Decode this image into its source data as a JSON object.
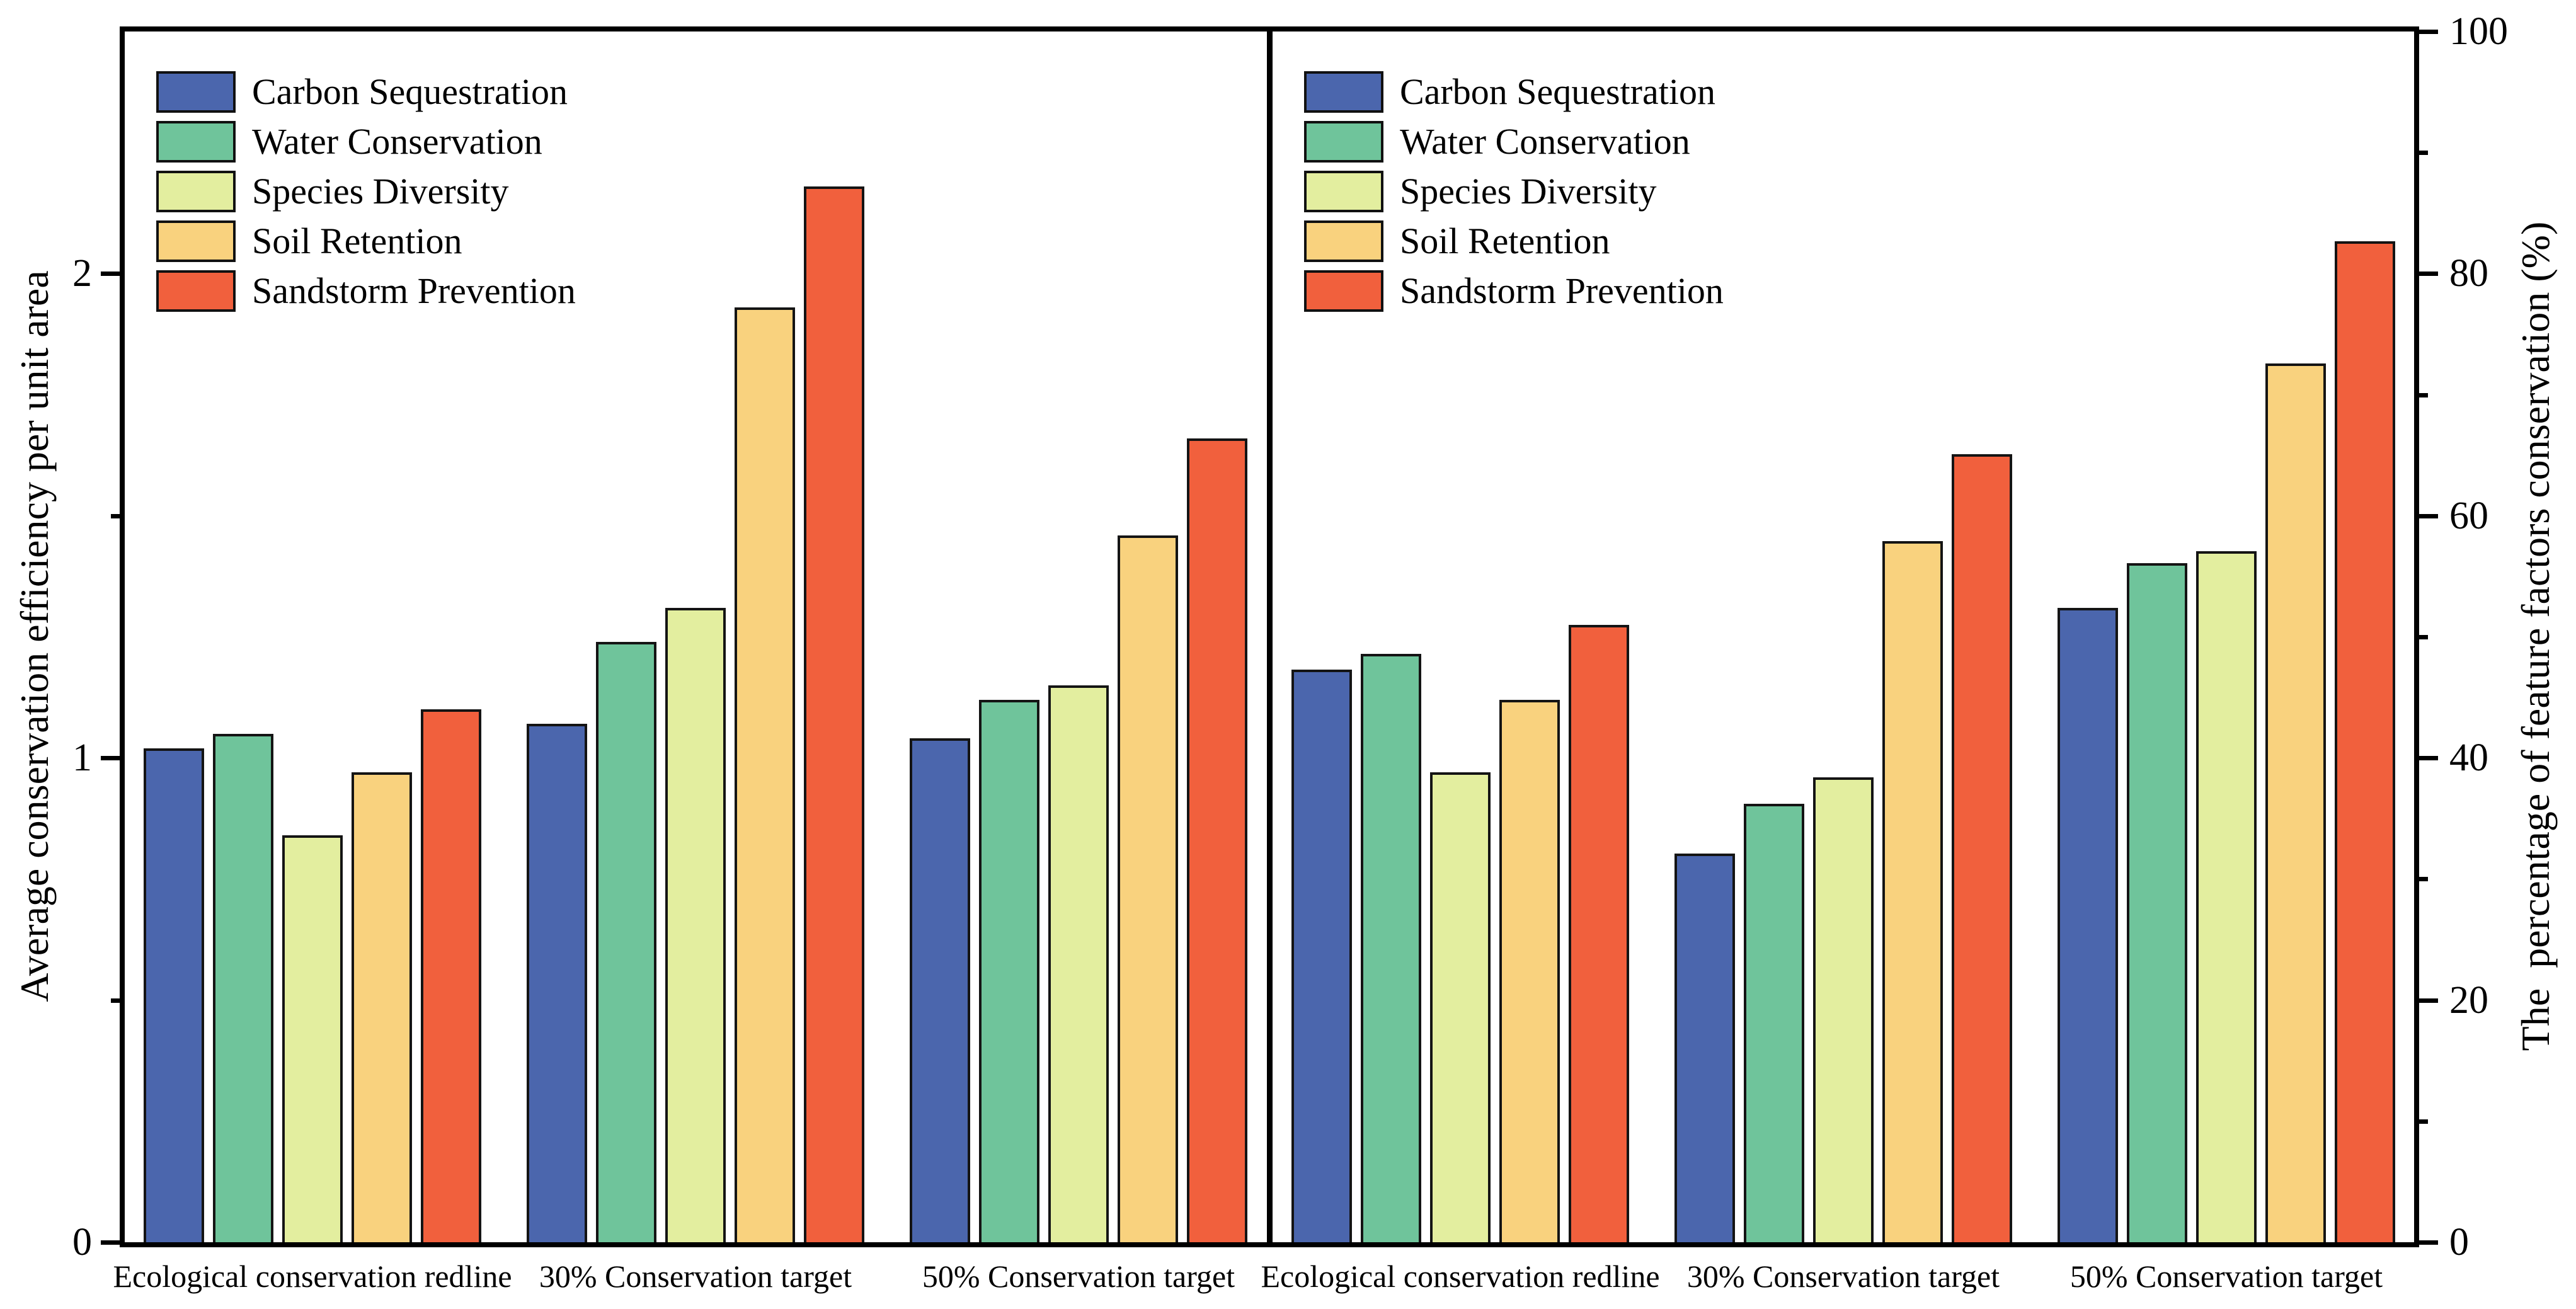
{
  "figure": {
    "background": "#ffffff",
    "frame_color": "#000000",
    "bar_border_color": "#141414"
  },
  "chart_data": [
    {
      "type": "bar",
      "panel": "left",
      "axis_side": "left",
      "ylabel": "Average conservation efficiency per unit area",
      "ylim": [
        0,
        2.5
      ],
      "yticks_major": [
        0,
        1,
        2
      ],
      "ytick_labels": [
        "0",
        "1",
        "2"
      ],
      "yticks_minor": [
        0.5,
        1.5
      ],
      "grid": "off",
      "legend_position": "upper-left",
      "categories": [
        "Ecological conservation redline",
        "30% Conservation target",
        "50% Conservation target"
      ],
      "series": [
        {
          "name": "Carbon Sequestration",
          "color": "#4B66AD",
          "values": [
            1.02,
            1.07,
            1.04
          ]
        },
        {
          "name": "Water Conservation",
          "color": "#6FC49B",
          "values": [
            1.05,
            1.24,
            1.12
          ]
        },
        {
          "name": "Species Diversity",
          "color": "#E3EE9F",
          "values": [
            0.84,
            1.31,
            1.15
          ]
        },
        {
          "name": "Soil Retention",
          "color": "#F9D27E",
          "values": [
            0.97,
            1.93,
            1.46
          ]
        },
        {
          "name": "Sandstorm Prevention",
          "color": "#F1603D",
          "values": [
            1.1,
            2.18,
            1.66
          ]
        }
      ]
    },
    {
      "type": "bar",
      "panel": "right",
      "axis_side": "right",
      "ylabel": "The  percentage of feature factors conservation (%)",
      "ylim": [
        0,
        100
      ],
      "yticks_major": [
        0,
        20,
        40,
        60,
        80,
        100
      ],
      "ytick_labels": [
        "0",
        "20",
        "40",
        "60",
        "80",
        "100"
      ],
      "yticks_minor": [
        10,
        30,
        50,
        70,
        90
      ],
      "grid": "off",
      "legend_position": "upper-left",
      "categories": [
        "Ecological conservation redline",
        "30% Conservation target",
        "50% Conservation target"
      ],
      "series": [
        {
          "name": "Carbon Sequestration",
          "color": "#4B66AD",
          "values": [
            47.3,
            32.1,
            52.4
          ]
        },
        {
          "name": "Water Conservation",
          "color": "#6FC49B",
          "values": [
            48.6,
            36.2,
            56.1
          ]
        },
        {
          "name": "Species Diversity",
          "color": "#E3EE9F",
          "values": [
            38.8,
            38.4,
            57.1
          ]
        },
        {
          "name": "Soil Retention",
          "color": "#F9D27E",
          "values": [
            44.8,
            57.9,
            72.6
          ]
        },
        {
          "name": "Sandstorm Prevention",
          "color": "#F1603D",
          "values": [
            51.0,
            65.1,
            82.7
          ]
        }
      ]
    }
  ]
}
